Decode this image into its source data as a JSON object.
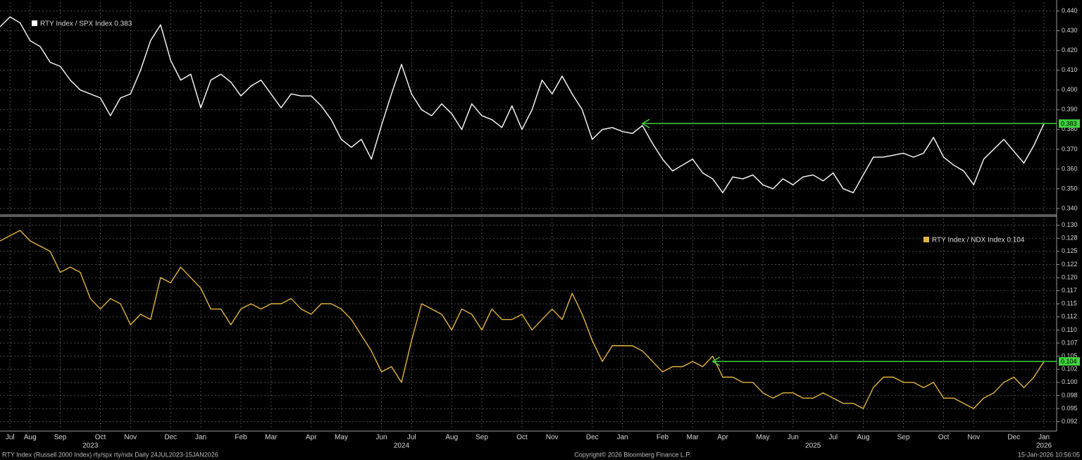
{
  "chart_data": [
    {
      "type": "line",
      "legend": "upper left",
      "grid": true,
      "ylim": [
        0.3375,
        0.4445
      ],
      "yticks": [
        {
          "value": 0.44,
          "label": "0.440"
        },
        {
          "value": 0.43,
          "label": "0.430"
        },
        {
          "value": 0.42,
          "label": "0.420"
        },
        {
          "value": 0.41,
          "label": "0.410"
        },
        {
          "value": 0.4,
          "label": "0.400"
        },
        {
          "value": 0.39,
          "label": "0.390"
        },
        {
          "value": 0.38,
          "label": "0.380"
        },
        {
          "value": 0.37,
          "label": "0.370"
        },
        {
          "value": 0.36,
          "label": "0.360"
        },
        {
          "value": 0.35,
          "label": "0.350"
        },
        {
          "value": 0.34,
          "label": "0.340"
        }
      ],
      "series": [
        {
          "name": "RTY Index / SPX Index",
          "color": "#ffffff",
          "values": [
            0.432,
            0.437,
            0.434,
            0.425,
            0.422,
            0.414,
            0.412,
            0.405,
            0.4,
            0.398,
            0.396,
            0.387,
            0.396,
            0.398,
            0.41,
            0.425,
            0.433,
            0.415,
            0.405,
            0.408,
            0.391,
            0.405,
            0.408,
            0.404,
            0.397,
            0.402,
            0.405,
            0.398,
            0.391,
            0.398,
            0.397,
            0.397,
            0.392,
            0.385,
            0.375,
            0.371,
            0.375,
            0.365,
            0.382,
            0.398,
            0.413,
            0.398,
            0.39,
            0.387,
            0.393,
            0.388,
            0.38,
            0.393,
            0.387,
            0.385,
            0.381,
            0.392,
            0.38,
            0.39,
            0.405,
            0.398,
            0.407,
            0.398,
            0.39,
            0.375,
            0.38,
            0.381,
            0.379,
            0.378,
            0.382,
            0.373,
            0.365,
            0.359,
            0.362,
            0.365,
            0.358,
            0.355,
            0.348,
            0.356,
            0.355,
            0.357,
            0.352,
            0.35,
            0.355,
            0.352,
            0.356,
            0.357,
            0.354,
            0.358,
            0.35,
            0.348,
            0.357,
            0.366,
            0.366,
            0.367,
            0.368,
            0.366,
            0.368,
            0.376,
            0.366,
            0.362,
            0.359,
            0.352,
            0.365,
            0.37,
            0.375,
            0.369,
            0.363,
            0.372,
            0.383
          ]
        }
      ]
    },
    {
      "type": "line",
      "legend": "upper right",
      "grid": true,
      "ylim": [
        0.0907,
        0.1313
      ],
      "yticks": [
        {
          "value": 0.13,
          "label": "0.130"
        },
        {
          "value": 0.1275,
          "label": "0.128"
        },
        {
          "value": 0.125,
          "label": "0.125"
        },
        {
          "value": 0.1225,
          "label": "0.122"
        },
        {
          "value": 0.12,
          "label": "0.120"
        },
        {
          "value": 0.1175,
          "label": "0.117"
        },
        {
          "value": 0.115,
          "label": "0.115"
        },
        {
          "value": 0.1125,
          "label": "0.112"
        },
        {
          "value": 0.11,
          "label": "0.110"
        },
        {
          "value": 0.1075,
          "label": "0.107"
        },
        {
          "value": 0.105,
          "label": "0.105"
        },
        {
          "value": 0.1025,
          "label": "0.102"
        },
        {
          "value": 0.1,
          "label": "0.100"
        },
        {
          "value": 0.0975,
          "label": "0.098"
        },
        {
          "value": 0.095,
          "label": "0.095"
        },
        {
          "value": 0.0925,
          "label": "0.092"
        }
      ],
      "categories": [
        null,
        "Jul",
        null,
        "Aug",
        null,
        null,
        "Sep",
        null,
        null,
        null,
        "Oct",
        null,
        null,
        "Nov",
        null,
        null,
        null,
        "Dec",
        null,
        null,
        "Jan",
        null,
        null,
        null,
        "Feb",
        null,
        null,
        "Mar",
        null,
        null,
        null,
        "Apr",
        null,
        null,
        "May",
        null,
        null,
        null,
        "Jun",
        null,
        null,
        "Jul",
        null,
        null,
        null,
        "Aug",
        null,
        null,
        "Sep",
        null,
        null,
        null,
        "Oct",
        null,
        null,
        "Nov",
        null,
        null,
        null,
        "Dec",
        null,
        null,
        "Jan",
        null,
        null,
        null,
        "Feb",
        null,
        null,
        "Mar",
        null,
        null,
        "Apr",
        null,
        null,
        null,
        "May",
        null,
        null,
        "Jun",
        null,
        null,
        null,
        "Jul",
        null,
        null,
        "Aug",
        null,
        null,
        null,
        "Sep",
        null,
        null,
        null,
        "Oct",
        null,
        null,
        "Nov",
        null,
        null,
        null,
        "Dec",
        null,
        null,
        "Jan"
      ],
      "year_labels": [
        null,
        null,
        null,
        null,
        null,
        null,
        null,
        null,
        null,
        "2023",
        null,
        null,
        null,
        null,
        null,
        null,
        null,
        null,
        null,
        null,
        null,
        null,
        null,
        null,
        null,
        null,
        null,
        null,
        null,
        null,
        null,
        null,
        null,
        null,
        null,
        null,
        null,
        null,
        null,
        null,
        "2024",
        null,
        null,
        null,
        null,
        null,
        null,
        null,
        null,
        null,
        null,
        null,
        null,
        null,
        null,
        null,
        null,
        null,
        null,
        null,
        null,
        null,
        null,
        null,
        null,
        null,
        null,
        null,
        null,
        null,
        null,
        null,
        null,
        null,
        null,
        null,
        null,
        null,
        null,
        null,
        null,
        "2025",
        null,
        null,
        null,
        null,
        null,
        null,
        null,
        null,
        null,
        null,
        null,
        null,
        null,
        null,
        null,
        null,
        null,
        null,
        null,
        null,
        null,
        null,
        "2026"
      ],
      "series": [
        {
          "name": "RTY Index / NDX Index",
          "color": "#e3b443",
          "values": [
            0.127,
            0.128,
            0.129,
            0.127,
            0.126,
            0.125,
            0.121,
            0.122,
            0.121,
            0.116,
            0.114,
            0.116,
            0.115,
            0.111,
            0.113,
            0.112,
            0.12,
            0.119,
            0.122,
            0.12,
            0.118,
            0.114,
            0.114,
            0.111,
            0.114,
            0.115,
            0.114,
            0.115,
            0.115,
            0.116,
            0.114,
            0.113,
            0.115,
            0.115,
            0.114,
            0.112,
            0.109,
            0.106,
            0.102,
            0.103,
            0.1,
            0.108,
            0.115,
            0.114,
            0.113,
            0.11,
            0.114,
            0.113,
            0.11,
            0.114,
            0.112,
            0.112,
            0.113,
            0.11,
            0.112,
            0.114,
            0.112,
            0.117,
            0.113,
            0.108,
            0.104,
            0.107,
            0.107,
            0.107,
            0.106,
            0.104,
            0.102,
            0.103,
            0.103,
            0.104,
            0.103,
            0.105,
            0.101,
            0.101,
            0.1,
            0.1,
            0.098,
            0.097,
            0.098,
            0.098,
            0.097,
            0.097,
            0.098,
            0.097,
            0.096,
            0.096,
            0.095,
            0.099,
            0.101,
            0.101,
            0.1,
            0.1,
            0.099,
            0.1,
            0.097,
            0.097,
            0.096,
            0.095,
            0.097,
            0.098,
            0.1,
            0.101,
            0.099,
            0.101,
            0.104
          ]
        }
      ]
    }
  ],
  "footer": {
    "left": "RTY Index (Russell 2000 Index) rty/spx rty/ndx Daily 24JUL2023-15JAN2026",
    "center": "Copyright© 2026 Bloomberg Finance L.P.",
    "right": "15-Jan-2026 10:56:05"
  }
}
